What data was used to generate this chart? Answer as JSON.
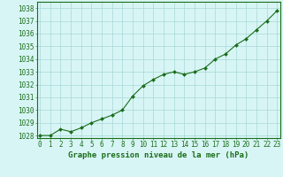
{
  "x": [
    0,
    1,
    2,
    3,
    4,
    5,
    6,
    7,
    8,
    9,
    10,
    11,
    12,
    13,
    14,
    15,
    16,
    17,
    18,
    19,
    20,
    21,
    22,
    23
  ],
  "y": [
    1028.0,
    1028.0,
    1028.5,
    1028.3,
    1028.6,
    1029.0,
    1029.3,
    1029.6,
    1030.0,
    1031.1,
    1031.9,
    1032.4,
    1032.8,
    1033.0,
    1032.8,
    1033.0,
    1033.3,
    1034.0,
    1034.4,
    1035.1,
    1035.6,
    1036.3,
    1037.0,
    1037.8
  ],
  "line_color": "#1a6e1a",
  "marker": "D",
  "marker_size": 2.0,
  "bg_color": "#d8f5f5",
  "grid_color": "#a8d8d8",
  "xlabel_label": "Graphe pression niveau de la mer (hPa)",
  "ylim_min": 1027.8,
  "ylim_max": 1038.5,
  "xlim_min": -0.3,
  "xlim_max": 23.3,
  "yticks": [
    1028,
    1029,
    1030,
    1031,
    1032,
    1033,
    1034,
    1035,
    1036,
    1037,
    1038
  ],
  "xticks": [
    0,
    1,
    2,
    3,
    4,
    5,
    6,
    7,
    8,
    9,
    10,
    11,
    12,
    13,
    14,
    15,
    16,
    17,
    18,
    19,
    20,
    21,
    22,
    23
  ],
  "tick_fontsize": 5.5,
  "xlabel_fontsize": 6.5,
  "line_color_hex": "#1a6e1a"
}
